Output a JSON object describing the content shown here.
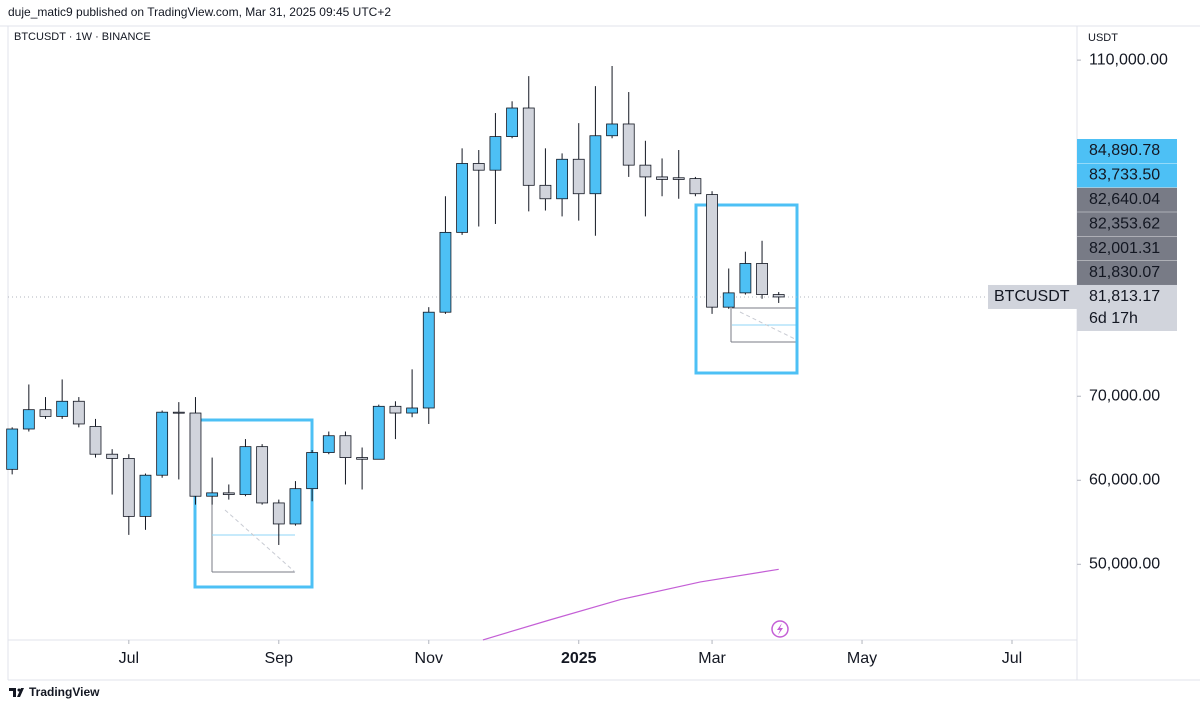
{
  "header": {
    "publisher": "duje_matic9 published on TradingView.com, Mar 31, 2025 09:45 UTC+2",
    "footer": "TradingView"
  },
  "chart_data": {
    "type": "candlestick",
    "title": "BTCUSDT · 1W · BINANCE",
    "y_axis_label": "USDT",
    "up_color": "#4dc0f5",
    "down_color": "#d1d4dc",
    "outline_color": "#131722",
    "open": [
      61300,
      66100,
      68400,
      67600,
      69400,
      66400,
      63100,
      62600,
      55700,
      60600,
      68100,
      68000,
      58100,
      58500,
      58300,
      64000,
      57300,
      54800,
      59000,
      63300,
      65300,
      62700,
      62500,
      68800,
      68000,
      68600,
      80000,
      89500,
      97700,
      96900,
      100900,
      104300,
      95100,
      93500,
      98200,
      94100,
      101000,
      102400,
      97500,
      96100,
      96000,
      95900,
      94000,
      80600,
      82300,
      85800,
      82100
    ],
    "high": [
      66300,
      71400,
      69900,
      72000,
      69900,
      67300,
      63700,
      63100,
      60800,
      68300,
      69300,
      69900,
      62700,
      59500,
      64900,
      64300,
      57700,
      59900,
      63600,
      65800,
      65800,
      63900,
      69000,
      69400,
      73200,
      80600,
      93800,
      99500,
      99300,
      103700,
      105100,
      108100,
      99500,
      98900,
      102500,
      106900,
      109300,
      106200,
      100400,
      98300,
      99300,
      96100,
      94400,
      85200,
      87200,
      88500,
      82400
    ],
    "low": [
      60700,
      65800,
      67300,
      67300,
      66300,
      62700,
      58300,
      53500,
      54100,
      60300,
      60100,
      57100,
      57100,
      57700,
      58100,
      57100,
      52300,
      54600,
      57500,
      63100,
      59500,
      58900,
      62500,
      64900,
      67500,
      66700,
      79800,
      89200,
      90200,
      90500,
      100700,
      92000,
      92100,
      91400,
      90900,
      89100,
      100700,
      96100,
      91400,
      93800,
      93500,
      93800,
      79800,
      80400,
      82100,
      81600,
      81100
    ],
    "close": [
      66100,
      68400,
      67600,
      69400,
      66700,
      63100,
      62600,
      55700,
      60600,
      68100,
      68000,
      58100,
      58500,
      58300,
      64000,
      57300,
      54800,
      59000,
      63300,
      65300,
      62700,
      62500,
      68800,
      68000,
      68600,
      80000,
      89500,
      97700,
      96900,
      100900,
      104300,
      95100,
      93500,
      98200,
      94100,
      101000,
      102400,
      97500,
      96100,
      95800,
      95800,
      94100,
      80600,
      82300,
      85800,
      82100,
      81813.17
    ],
    "overlay": {
      "color": "#c45fd6",
      "x": [
        28.25,
        32.3,
        36.5,
        41.3,
        46
      ],
      "values": [
        41000,
        43400,
        45800,
        47900,
        49400
      ]
    },
    "xlim": [
      -0.25,
      63.9
    ],
    "ylim": [
      40990,
      114060
    ],
    "xticks": [
      {
        "value": 7,
        "label": "Jul"
      },
      {
        "value": 16,
        "label": "Sep"
      },
      {
        "value": 25,
        "label": "Nov"
      },
      {
        "value": 34,
        "label": "2025"
      },
      {
        "value": 42,
        "label": "Mar"
      },
      {
        "value": 51,
        "label": "May"
      },
      {
        "value": 60,
        "label": "Jul"
      }
    ],
    "bold_xtick": "2025",
    "yticks": [
      {
        "value": 50000,
        "label": "50,000.00"
      },
      {
        "value": 60000,
        "label": "60,000.00"
      },
      {
        "value": 70000,
        "label": "70,000.00"
      },
      {
        "value": 110000,
        "label": "110,000.00"
      }
    ],
    "price_labels": [
      {
        "value": 84890.78,
        "label": "84,890.78",
        "color": "#4dc0f5"
      },
      {
        "value": 83733.5,
        "label": "83,733.50",
        "color": "#4dc0f5"
      },
      {
        "value": 82640.04,
        "label": "82,640.04",
        "color": "#787b86"
      },
      {
        "value": 82353.62,
        "label": "82,353.62",
        "color": "#787b86"
      },
      {
        "value": 82001.31,
        "label": "82,001.31",
        "color": "#787b86"
      },
      {
        "value": 81830.07,
        "label": "81,830.07",
        "color": "#787b86"
      }
    ],
    "last_price": {
      "value": 81813.17,
      "label": "81,813.17"
    },
    "symbol_label": "BTCUSDT",
    "countdown": "6d 17h"
  }
}
